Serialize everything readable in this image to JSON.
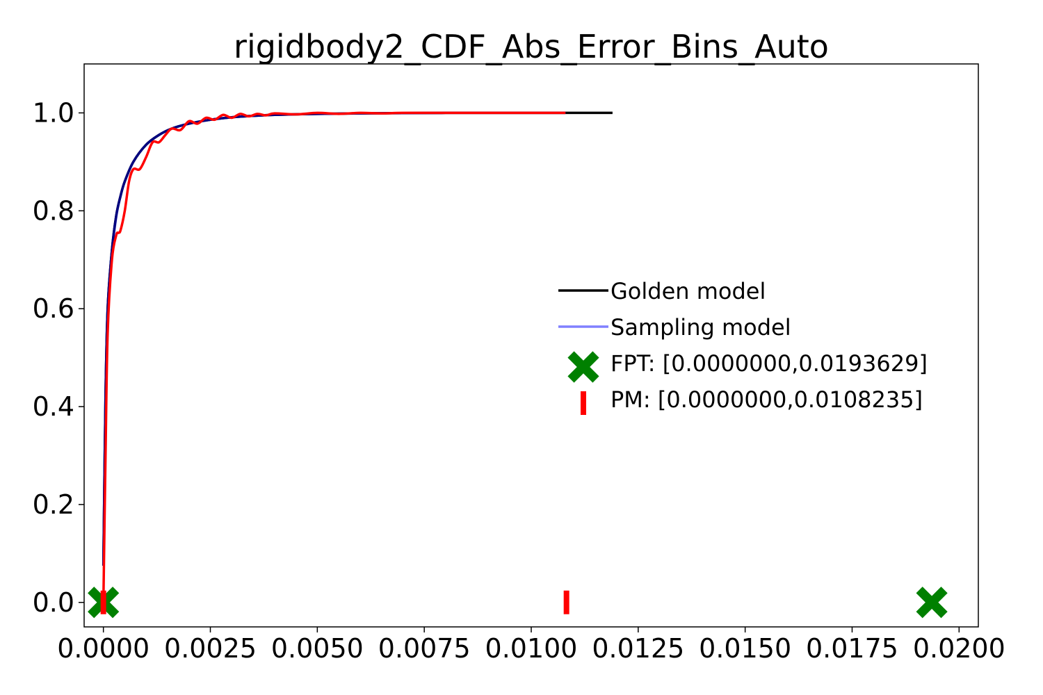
{
  "chart_data": {
    "type": "line",
    "title": "rigidbody2_CDF_Abs_Error_Bins_Auto",
    "xlabel": "",
    "ylabel": "",
    "xlim": [
      -0.00045,
      0.02045
    ],
    "ylim": [
      -0.05,
      1.1
    ],
    "xticks": [
      0.0,
      0.0025,
      0.005,
      0.0075,
      0.01,
      0.0125,
      0.015,
      0.0175,
      0.02
    ],
    "xtick_labels": [
      "0.0000",
      "0.0025",
      "0.0050",
      "0.0075",
      "0.0100",
      "0.0125",
      "0.0150",
      "0.0175",
      "0.0200"
    ],
    "yticks": [
      0.0,
      0.2,
      0.4,
      0.6,
      0.8,
      1.0
    ],
    "ytick_labels": [
      "0.0",
      "0.2",
      "0.4",
      "0.6",
      "0.8",
      "1.0"
    ],
    "grid": false,
    "legend_position": "center-right",
    "series": [
      {
        "name": "Golden model",
        "color": "#000000",
        "x": [
          0.0,
          5e-05,
          0.0001,
          0.0002,
          0.0003,
          0.0004,
          0.0005,
          0.0007,
          0.001,
          0.0013,
          0.0016,
          0.002,
          0.0025,
          0.003,
          0.0035,
          0.004,
          0.005,
          0.006,
          0.007,
          0.008,
          0.009,
          0.01,
          0.011,
          0.0119
        ],
        "y": [
          0.075,
          0.42,
          0.6,
          0.72,
          0.79,
          0.83,
          0.86,
          0.9,
          0.935,
          0.955,
          0.968,
          0.978,
          0.986,
          0.991,
          0.994,
          0.996,
          0.998,
          0.999,
          0.9995,
          1.0,
          1.0,
          1.0,
          1.0,
          1.0
        ]
      },
      {
        "name": "Sampling model",
        "color": "#8080ff",
        "x": [
          0.0,
          5e-05,
          0.0001,
          0.0002,
          0.0003,
          0.0004,
          0.0005,
          0.0007,
          0.001,
          0.0013,
          0.0016,
          0.002,
          0.0025,
          0.003,
          0.0035,
          0.004,
          0.005,
          0.006,
          0.007,
          0.008,
          0.009,
          0.01,
          0.0108
        ],
        "y": [
          0.075,
          0.41,
          0.59,
          0.71,
          0.785,
          0.83,
          0.86,
          0.9,
          0.935,
          0.955,
          0.968,
          0.978,
          0.986,
          0.991,
          0.994,
          0.996,
          0.998,
          0.999,
          0.9995,
          1.0,
          1.0,
          1.0,
          1.0
        ]
      },
      {
        "name": "",
        "color": "#00007f",
        "x": [
          0.0,
          5e-05,
          0.0001,
          0.0002,
          0.0003,
          0.0004,
          0.0005,
          0.0007,
          0.001,
          0.0013,
          0.0016,
          0.002,
          0.0025,
          0.003,
          0.0035,
          0.004,
          0.005,
          0.006,
          0.007,
          0.008,
          0.009,
          0.01,
          0.0108
        ],
        "y": [
          0.075,
          0.42,
          0.6,
          0.72,
          0.79,
          0.83,
          0.86,
          0.9,
          0.935,
          0.955,
          0.968,
          0.978,
          0.986,
          0.991,
          0.994,
          0.996,
          0.998,
          0.999,
          0.9995,
          1.0,
          1.0,
          1.0,
          1.0
        ]
      },
      {
        "name": "",
        "color": "#ff0000",
        "x": [
          0.0,
          5e-05,
          0.0001,
          0.0002,
          0.0003,
          0.00035,
          0.0004,
          0.0005,
          0.0006,
          0.0007,
          0.00085,
          0.001,
          0.00115,
          0.0013,
          0.00145,
          0.0016,
          0.0018,
          0.002,
          0.0022,
          0.0024,
          0.0026,
          0.0028,
          0.003,
          0.0032,
          0.0034,
          0.0036,
          0.0038,
          0.004,
          0.0045,
          0.005,
          0.0055,
          0.006,
          0.0065,
          0.007,
          0.008,
          0.009,
          0.01,
          0.0108
        ],
        "y": [
          0.0,
          0.3,
          0.55,
          0.7,
          0.75,
          0.755,
          0.76,
          0.8,
          0.86,
          0.885,
          0.885,
          0.91,
          0.94,
          0.94,
          0.955,
          0.968,
          0.965,
          0.983,
          0.978,
          0.99,
          0.986,
          0.996,
          0.99,
          0.998,
          0.993,
          0.998,
          0.995,
          0.999,
          0.997,
          1.0,
          0.998,
          1.0,
          0.999,
          1.0,
          1.0,
          1.0,
          1.0,
          1.0
        ]
      }
    ],
    "markers": [
      {
        "name": "FPT: [0.0000000,0.0193629]",
        "symbol": "X",
        "color": "#008000",
        "points": [
          [
            0.0,
            0.0
          ],
          [
            0.0193629,
            0.0
          ]
        ]
      },
      {
        "name": "PM: [0.0000000,0.0108235]",
        "symbol": "|",
        "color": "#ff0000",
        "points": [
          [
            0.0,
            0.0
          ],
          [
            0.0108235,
            0.0
          ]
        ]
      }
    ],
    "legend": [
      {
        "label": "Golden model",
        "kind": "line",
        "color": "#000000"
      },
      {
        "label": "Sampling model",
        "kind": "line",
        "color": "#8080ff"
      },
      {
        "label": "FPT: [0.0000000,0.0193629]",
        "kind": "X",
        "color": "#008000"
      },
      {
        "label": "PM: [0.0000000,0.0108235]",
        "kind": "|",
        "color": "#ff0000"
      }
    ]
  }
}
